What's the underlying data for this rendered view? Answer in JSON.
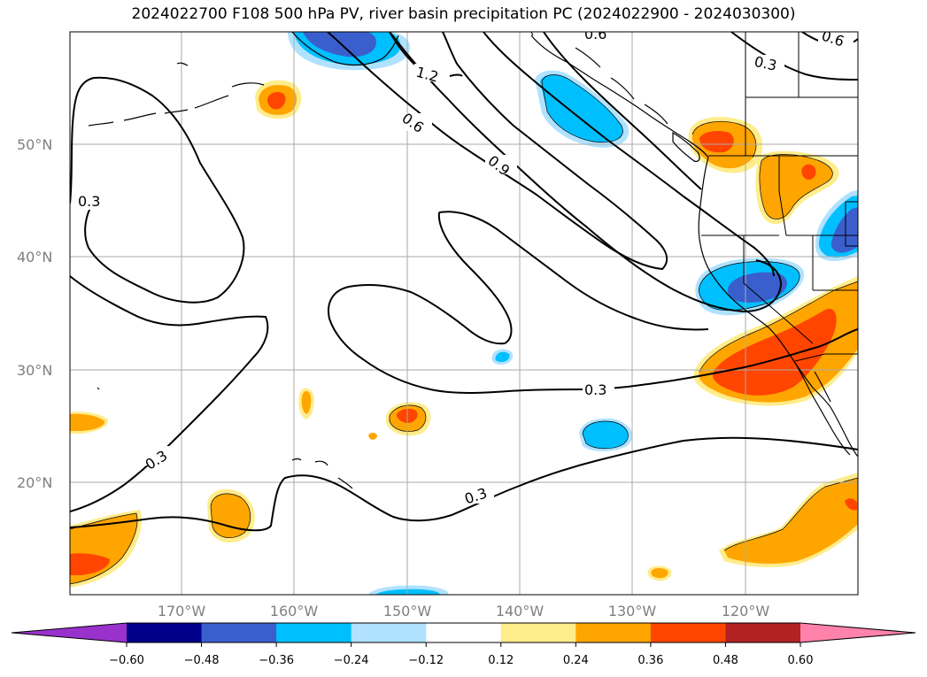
{
  "title": "2024022700 F108 500 hPa PV, river basin precipitation PC (2024022900 - 2024030300)",
  "latitude_labels": [
    "50°N",
    "40°N",
    "30°N",
    "20°N"
  ],
  "longitude_labels": [
    "170°W",
    "160°W",
    "150°W",
    "140°W",
    "130°W",
    "120°W"
  ],
  "contour_labels": [
    "0.3",
    "0.6",
    "1.2",
    "0.6",
    "0.9",
    "0.3",
    "0.3",
    "0.3",
    "0.3",
    "0.6"
  ],
  "colorbar": {
    "ticks": [
      "−0.60",
      "−0.48",
      "−0.36",
      "−0.24",
      "−0.12",
      "0.12",
      "0.24",
      "0.36",
      "0.48",
      "0.60"
    ],
    "colors": [
      "#9932cc",
      "#00008b",
      "#3a5fcd",
      "#00bfff",
      "#b0e2ff",
      "#ffffff",
      "#ffec8b",
      "#ffa500",
      "#ff4500",
      "#b22222",
      "#ff82ab"
    ]
  },
  "palette": {
    "light_blue": "#b0e2ff",
    "sky_blue": "#00bfff",
    "royal_blue": "#3a5fcd",
    "light_yellow": "#ffec8b",
    "orange": "#ffa500",
    "orange_red": "#ff4500"
  }
}
